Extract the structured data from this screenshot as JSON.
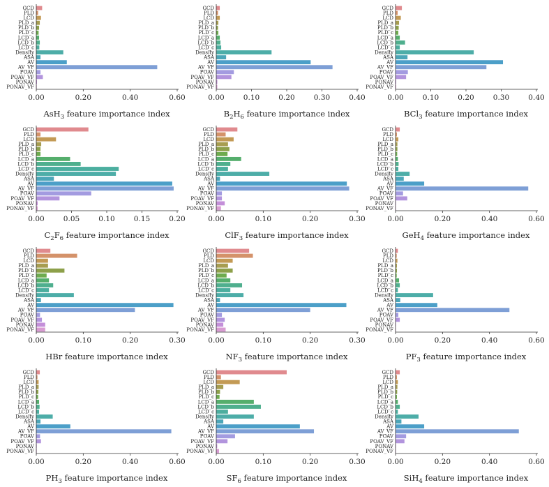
{
  "features": [
    "GCD",
    "PLD",
    "LCD",
    "PLD_a",
    "PLD_b",
    "PLD_c",
    "LCD_a",
    "LCD_b",
    "LCD_c",
    "Density",
    "ASA",
    "AV",
    "AV_VF",
    "POAV",
    "POAV_VF",
    "PONAV",
    "PONAV_VF"
  ],
  "feature_colors": [
    "#e08a8e",
    "#d4926a",
    "#c39a55",
    "#a79d50",
    "#8da04a",
    "#6eab4e",
    "#55ae6c",
    "#4faf8e",
    "#4cae9f",
    "#4dada8",
    "#4ca6b8",
    "#4c9fc8",
    "#7e9fd6",
    "#a39be0",
    "#b294dd",
    "#c48fd9",
    "#d89cd2"
  ],
  "chart_data": [
    {
      "type": "bar",
      "orientation": "horizontal",
      "title_formula": "AsH",
      "title_sub": "3",
      "title_rest": " feature importance index",
      "xlim": [
        0,
        0.6
      ],
      "xticks": [
        "0.00",
        "0.20",
        "0.40",
        "0.60"
      ],
      "values": [
        0.025,
        0.008,
        0.02,
        0.015,
        0.012,
        0.01,
        0.012,
        0.015,
        0.013,
        0.115,
        0.018,
        0.13,
        0.515,
        0.018,
        0.028,
        0.003,
        0.002
      ]
    },
    {
      "type": "bar",
      "orientation": "horizontal",
      "title_formula": "B",
      "title_sub": "2",
      "title_mid": "H",
      "title_sub2": "6",
      "title_rest": " feature importance index",
      "xlim": [
        0,
        0.4
      ],
      "xticks": [
        "0.00",
        "0.10",
        "0.20",
        "0.30",
        "0.40"
      ],
      "values": [
        0.01,
        0.005,
        0.01,
        0.006,
        0.005,
        0.006,
        0.01,
        0.012,
        0.014,
        0.157,
        0.028,
        0.268,
        0.33,
        0.05,
        0.043,
        0.003,
        0.003
      ]
    },
    {
      "type": "bar",
      "orientation": "horizontal",
      "title_formula": "BCl",
      "title_sub": "3",
      "title_rest": " feature importance index",
      "xlim": [
        0,
        0.4
      ],
      "xticks": [
        "0.00",
        "0.10",
        "0.20",
        "0.30",
        "0.40"
      ],
      "values": [
        0.018,
        0.006,
        0.015,
        0.01,
        0.009,
        0.008,
        0.012,
        0.027,
        0.012,
        0.222,
        0.034,
        0.305,
        0.258,
        0.035,
        0.03,
        0.002,
        0.002
      ]
    },
    {
      "type": "bar",
      "orientation": "horizontal",
      "title_formula": "C",
      "title_sub": "2",
      "title_mid": "F",
      "title_sub2": "6",
      "title_rest": " feature importance index",
      "xlim": [
        0,
        0.2
      ],
      "xticks": [
        "0.00",
        "0.05",
        "0.10",
        "0.15",
        "0.20"
      ],
      "values": [
        0.074,
        0.006,
        0.028,
        0.007,
        0.006,
        0.006,
        0.048,
        0.063,
        0.117,
        0.113,
        0.025,
        0.193,
        0.195,
        0.078,
        0.033,
        0.002,
        0.002
      ]
    },
    {
      "type": "bar",
      "orientation": "horizontal",
      "title_formula": "ClF",
      "title_sub": "3",
      "title_rest": " feature importance index",
      "xlim": [
        0,
        0.3
      ],
      "xticks": [
        "0.00",
        "0.10",
        "0.20",
        "0.30"
      ],
      "values": [
        0.045,
        0.02,
        0.037,
        0.025,
        0.028,
        0.024,
        0.053,
        0.03,
        0.025,
        0.113,
        0.008,
        0.278,
        0.283,
        0.012,
        0.012,
        0.018,
        0.01
      ]
    },
    {
      "type": "bar",
      "orientation": "horizontal",
      "title_formula": "GeH",
      "title_sub": "4",
      "title_rest": " feature importance index",
      "xlim": [
        0,
        0.6
      ],
      "xticks": [
        "0.00",
        "0.20",
        "0.40",
        "0.60"
      ],
      "values": [
        0.018,
        0.006,
        0.012,
        0.008,
        0.008,
        0.007,
        0.01,
        0.013,
        0.012,
        0.06,
        0.035,
        0.122,
        0.565,
        0.032,
        0.05,
        0.002,
        0.002
      ]
    },
    {
      "type": "bar",
      "orientation": "horizontal",
      "title_formula": "HBr",
      "title_sub": "",
      "title_rest": " feature importance index",
      "xlim": [
        0,
        0.3
      ],
      "xticks": [
        "0.00",
        "0.10",
        "0.20",
        "0.30"
      ],
      "values": [
        0.03,
        0.087,
        0.025,
        0.025,
        0.06,
        0.022,
        0.027,
        0.036,
        0.027,
        0.08,
        0.01,
        0.292,
        0.21,
        0.008,
        0.012,
        0.019,
        0.019
      ]
    },
    {
      "type": "bar",
      "orientation": "horizontal",
      "title_formula": "NF",
      "title_sub": "3",
      "title_rest": " feature importance index",
      "xlim": [
        0,
        0.3
      ],
      "xticks": [
        "0.00",
        "0.10",
        "0.20",
        "0.30"
      ],
      "values": [
        0.07,
        0.078,
        0.035,
        0.025,
        0.035,
        0.022,
        0.03,
        0.055,
        0.03,
        0.058,
        0.008,
        0.277,
        0.2,
        0.012,
        0.018,
        0.015,
        0.02
      ]
    },
    {
      "type": "bar",
      "orientation": "horizontal",
      "title_formula": "PF",
      "title_sub": "3",
      "title_rest": " feature importance index",
      "xlim": [
        0,
        0.6
      ],
      "xticks": [
        "0.00",
        "0.20",
        "0.40",
        "0.60"
      ],
      "values": [
        0.01,
        0.005,
        0.008,
        0.006,
        0.006,
        0.005,
        0.015,
        0.018,
        0.01,
        0.16,
        0.02,
        0.178,
        0.485,
        0.012,
        0.018,
        0.002,
        0.002
      ]
    },
    {
      "type": "bar",
      "orientation": "horizontal",
      "title_formula": "PH",
      "title_sub": "3",
      "title_rest": " feature importance index",
      "xlim": [
        0,
        0.6
      ],
      "xticks": [
        "0.00",
        "0.20",
        "0.40",
        "0.60"
      ],
      "values": [
        0.015,
        0.005,
        0.01,
        0.01,
        0.009,
        0.008,
        0.012,
        0.014,
        0.012,
        0.07,
        0.018,
        0.145,
        0.575,
        0.016,
        0.02,
        0.002,
        0.002
      ]
    },
    {
      "type": "bar",
      "orientation": "horizontal",
      "title_formula": "SF",
      "title_sub": "6",
      "title_rest": " feature importance index",
      "xlim": [
        0,
        0.3
      ],
      "xticks": [
        "0.00",
        "0.10",
        "0.20",
        "0.30"
      ],
      "values": [
        0.15,
        0.01,
        0.05,
        0.015,
        0.008,
        0.007,
        0.08,
        0.095,
        0.025,
        0.08,
        0.015,
        0.178,
        0.208,
        0.04,
        0.024,
        0.002,
        0.006
      ]
    },
    {
      "type": "bar",
      "orientation": "horizontal",
      "title_formula": "SiH",
      "title_sub": "4",
      "title_rest": " feature importance index",
      "xlim": [
        0,
        0.6
      ],
      "xticks": [
        "0.00",
        "0.20",
        "0.40",
        "0.60"
      ],
      "values": [
        0.018,
        0.006,
        0.01,
        0.008,
        0.007,
        0.006,
        0.01,
        0.018,
        0.01,
        0.098,
        0.025,
        0.122,
        0.525,
        0.045,
        0.038,
        0.002,
        0.002
      ]
    }
  ]
}
